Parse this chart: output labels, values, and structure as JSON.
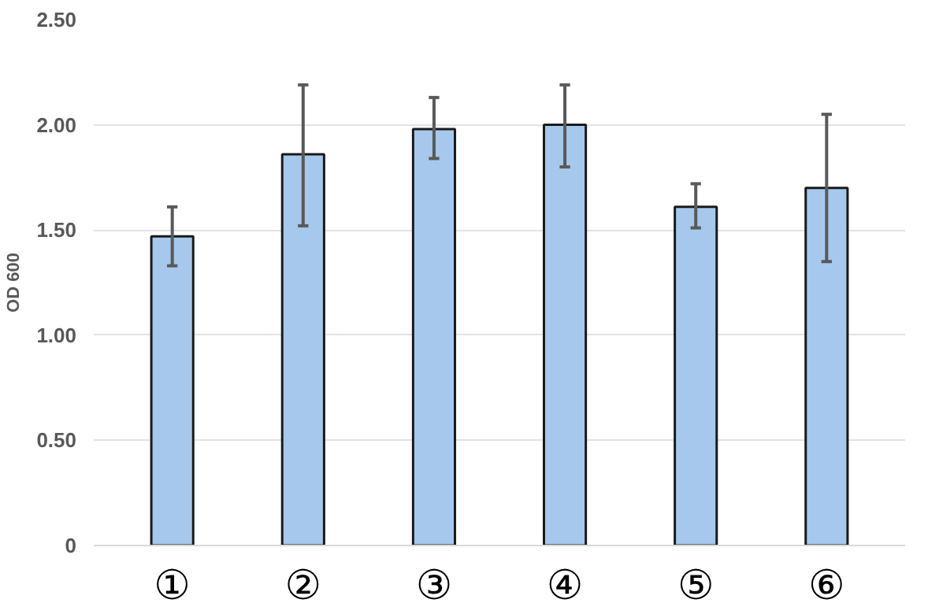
{
  "chart_data": {
    "type": "bar",
    "ylabel": "OD 600",
    "categories": [
      "①",
      "②",
      "③",
      "④",
      "⑤",
      "⑥"
    ],
    "values": [
      1.47,
      1.86,
      1.98,
      2.0,
      1.61,
      1.7
    ],
    "errors": [
      [
        1.33,
        1.61
      ],
      [
        1.52,
        2.19
      ],
      [
        1.84,
        2.13
      ],
      [
        1.8,
        2.19
      ],
      [
        1.51,
        1.72
      ],
      [
        1.35,
        2.05
      ]
    ],
    "color": "#a6c8ec",
    "ylim": [
      0,
      2.5
    ],
    "yticks": [
      0,
      {
        "value": 0.5,
        "label": "0.50"
      },
      {
        "value": 1.0,
        "label": "1.00"
      },
      {
        "value": 1.5,
        "label": "1.50"
      },
      {
        "value": 2.0,
        "label": "2.00"
      },
      {
        "value": 2.5,
        "label": "2.50"
      }
    ],
    "grid": "y"
  }
}
